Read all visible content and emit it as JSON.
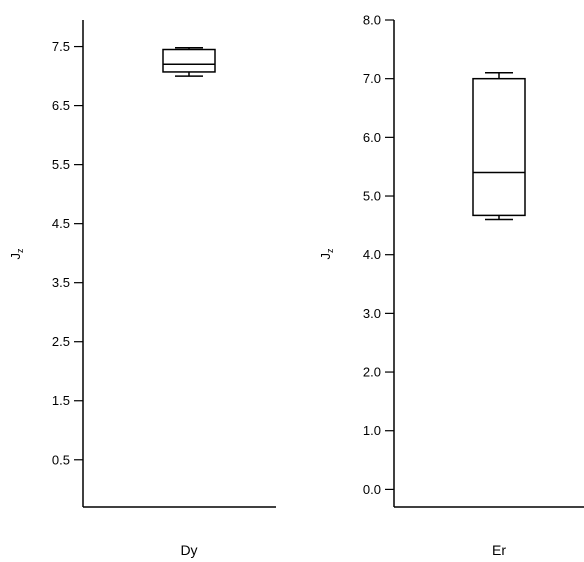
{
  "chart_data": [
    {
      "type": "box",
      "category": "Dy",
      "ylabel": "J",
      "ylabel_subscript": "z",
      "ylim": [
        -0.3,
        7.95
      ],
      "yticks": [
        0.5,
        1.5,
        2.5,
        3.5,
        4.5,
        5.5,
        6.5,
        7.5
      ],
      "ytick_labels": [
        "0.5",
        "1.5",
        "2.5",
        "3.5",
        "4.5",
        "5.5",
        "6.5",
        "7.5"
      ],
      "box": {
        "whisker_low": 7.0,
        "q1": 7.07,
        "median": 7.2,
        "q3": 7.45,
        "whisker_high": 7.48
      }
    },
    {
      "type": "box",
      "category": "Er",
      "ylabel": "J",
      "ylabel_subscript": "z",
      "ylim": [
        -0.3,
        8.0
      ],
      "yticks": [
        0.0,
        1.0,
        2.0,
        3.0,
        4.0,
        5.0,
        6.0,
        7.0,
        8.0
      ],
      "ytick_labels": [
        "0.0",
        "1.0",
        "2.0",
        "3.0",
        "4.0",
        "5.0",
        "6.0",
        "7.0",
        "8.0"
      ],
      "box": {
        "whisker_low": 4.6,
        "q1": 4.67,
        "median": 5.4,
        "q3": 7.0,
        "whisker_high": 7.1
      }
    }
  ]
}
